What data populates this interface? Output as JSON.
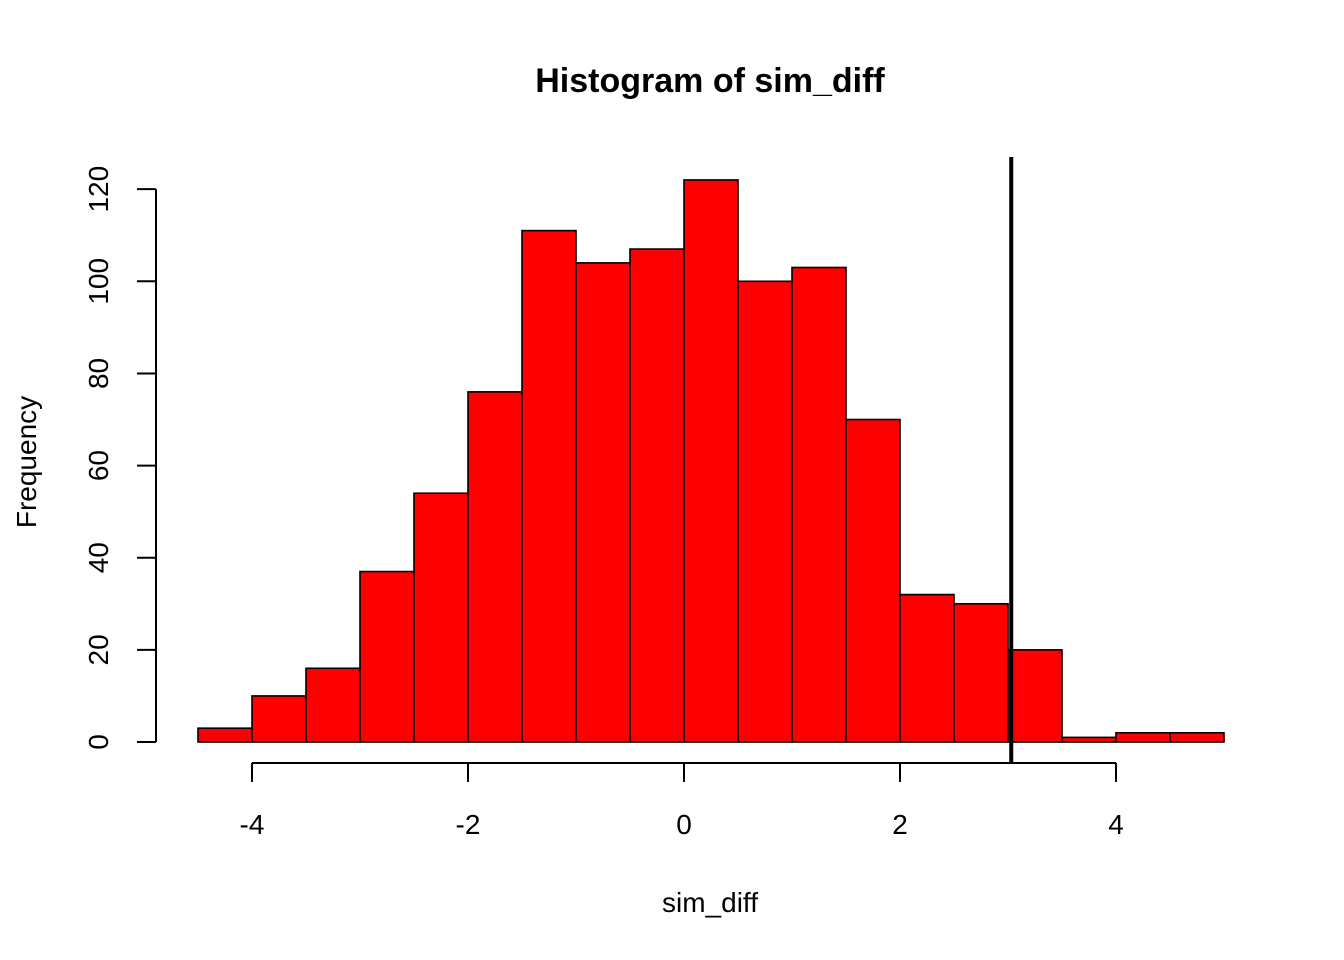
{
  "chart_data": {
    "type": "bar",
    "title": "Histogram of sim_diff",
    "xlabel": "sim_diff",
    "ylabel": "Frequency",
    "bin_edges": [
      -4.5,
      -4.0,
      -3.5,
      -3.0,
      -2.5,
      -2.0,
      -1.5,
      -1.0,
      -0.5,
      0.0,
      0.5,
      1.0,
      1.5,
      2.0,
      2.5,
      3.0,
      3.5,
      4.0,
      4.5,
      5.0
    ],
    "counts": [
      3,
      10,
      16,
      37,
      54,
      76,
      111,
      104,
      107,
      122,
      100,
      103,
      70,
      32,
      30,
      20,
      1,
      2,
      2
    ],
    "x_ticks": [
      -4,
      -2,
      0,
      2,
      4
    ],
    "x_tick_labels": [
      "-4",
      "-2",
      "0",
      "2",
      "4"
    ],
    "y_ticks": [
      0,
      20,
      40,
      60,
      80,
      100,
      120
    ],
    "y_tick_labels": [
      "0",
      "20",
      "40",
      "60",
      "80",
      "100",
      "120"
    ],
    "xlim": [
      -4.5,
      5.0
    ],
    "ylim": [
      0,
      122
    ],
    "vline_x": 3.03,
    "bar_color": "#ff0000",
    "line_color": "#000000"
  }
}
